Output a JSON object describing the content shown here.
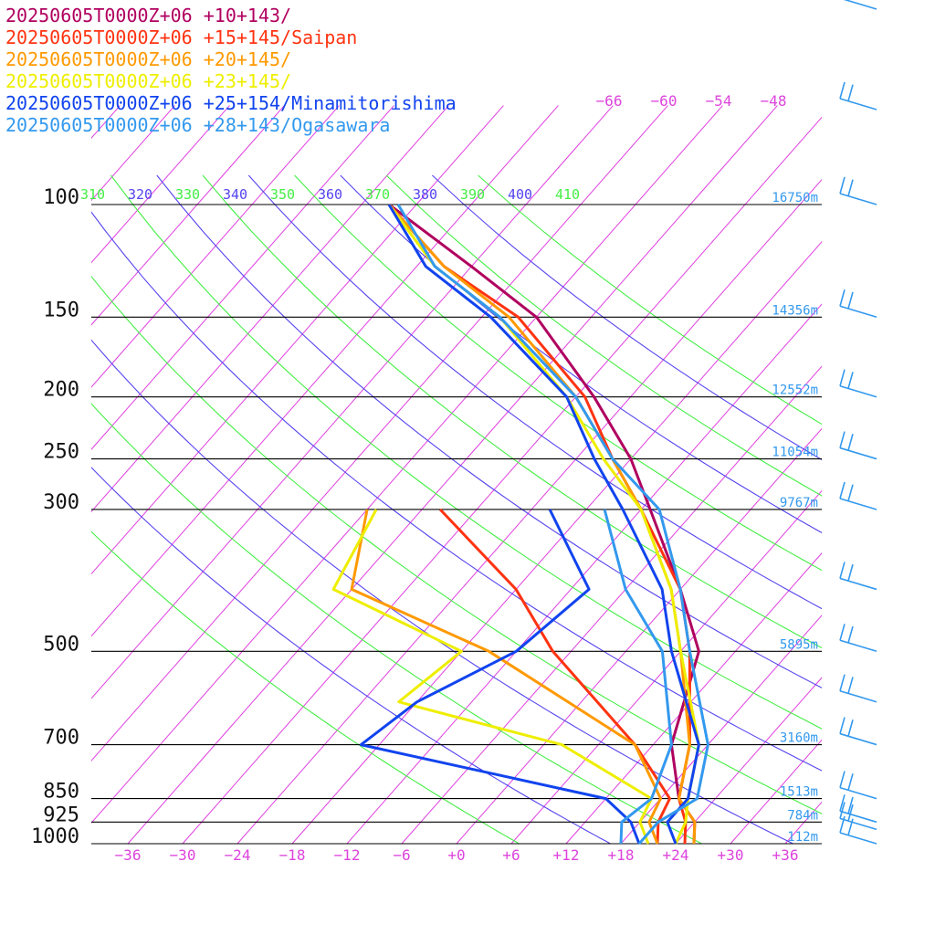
{
  "chart_data": {
    "type": "line",
    "title": "",
    "xlabel": "",
    "ylabel": "",
    "y_scale": "log-pressure",
    "ylim": [
      1000,
      100
    ],
    "xlim": [
      -39,
      39
    ],
    "pressure_ticks": [
      {
        "p": 100,
        "label": "100",
        "height": "16750m"
      },
      {
        "p": 150,
        "label": "150",
        "height": "14356m"
      },
      {
        "p": 200,
        "label": "200",
        "height": "12552m"
      },
      {
        "p": 250,
        "label": "250",
        "height": "11054m"
      },
      {
        "p": 300,
        "label": "300",
        "height": "9767m"
      },
      {
        "p": 500,
        "label": "500",
        "height": "5895m"
      },
      {
        "p": 700,
        "label": "700",
        "height": "3160m"
      },
      {
        "p": 850,
        "label": "850",
        "height": "1513m"
      },
      {
        "p": 925,
        "label": "925",
        "height": "784m"
      },
      {
        "p": 1000,
        "label": "1000",
        "height": "112m"
      }
    ],
    "temperature_ticks": [
      {
        "t": -36,
        "label": "−36"
      },
      {
        "t": -30,
        "label": "−30"
      },
      {
        "t": -24,
        "label": "−24"
      },
      {
        "t": -18,
        "label": "−18"
      },
      {
        "t": -12,
        "label": "−12"
      },
      {
        "t": -6,
        "label": "−6"
      },
      {
        "t": 0,
        "label": "+0"
      },
      {
        "t": 6,
        "label": "+6"
      },
      {
        "t": 12,
        "label": "+12"
      },
      {
        "t": 18,
        "label": "+18"
      },
      {
        "t": 24,
        "label": "+24"
      },
      {
        "t": 30,
        "label": "+30"
      },
      {
        "t": 36,
        "label": "+36"
      }
    ],
    "upper_temperature_labels": [
      {
        "t": -66,
        "label": "−66"
      },
      {
        "t": -60,
        "label": "−60"
      },
      {
        "t": -54,
        "label": "−54"
      },
      {
        "t": -48,
        "label": "−48"
      }
    ],
    "theta_labels": [
      "310",
      "320",
      "330",
      "340",
      "350",
      "360",
      "370",
      "380",
      "390",
      "400",
      "410"
    ],
    "series": [
      {
        "name": "20250605T0000Z+06 +10+143/",
        "color": "#b0005f",
        "temperature": [
          [
            1000,
            26
          ],
          [
            925,
            24
          ],
          [
            850,
            20
          ],
          [
            700,
            14
          ],
          [
            500,
            8
          ],
          [
            400,
            0
          ],
          [
            300,
            -11
          ],
          [
            250,
            -18
          ],
          [
            200,
            -28
          ],
          [
            150,
            -42
          ],
          [
            125,
            -54
          ],
          [
            100,
            -69
          ]
        ],
        "dewpoint": []
      },
      {
        "name": "20250605T0000Z+06 +15+145/Saipan",
        "color": "#ff3311",
        "temperature": [
          [
            1000,
            25
          ],
          [
            925,
            23
          ],
          [
            850,
            20
          ],
          [
            700,
            16
          ],
          [
            500,
            7
          ],
          [
            400,
            0
          ],
          [
            300,
            -12
          ],
          [
            250,
            -20
          ],
          [
            200,
            -29
          ],
          [
            150,
            -44
          ],
          [
            125,
            -57
          ],
          [
            100,
            -69
          ]
        ],
        "dewpoint": [
          [
            1000,
            22
          ],
          [
            925,
            20
          ],
          [
            850,
            19
          ],
          [
            700,
            10
          ],
          [
            500,
            -8
          ],
          [
            400,
            -18
          ],
          [
            300,
            -34
          ]
        ]
      },
      {
        "name": "20250605T0000Z+06 +20+145/",
        "color": "#ff9900",
        "temperature": [
          [
            1000,
            26
          ],
          [
            925,
            24
          ],
          [
            850,
            20
          ],
          [
            700,
            16
          ],
          [
            500,
            6
          ],
          [
            400,
            -1
          ],
          [
            300,
            -12
          ],
          [
            250,
            -20
          ],
          [
            200,
            -30
          ],
          [
            150,
            -45
          ],
          [
            125,
            -57
          ],
          [
            100,
            -69
          ]
        ],
        "dewpoint": [
          [
            1000,
            22
          ],
          [
            925,
            19
          ],
          [
            850,
            18
          ],
          [
            700,
            10
          ],
          [
            500,
            -15
          ],
          [
            400,
            -36
          ],
          [
            300,
            -42
          ]
        ]
      },
      {
        "name": "20250605T0000Z+06 +23+145/",
        "color": "#eeee00",
        "temperature": [
          [
            1000,
            24
          ],
          [
            925,
            23
          ],
          [
            850,
            21
          ],
          [
            700,
            17
          ],
          [
            500,
            6
          ],
          [
            400,
            -1
          ],
          [
            300,
            -12
          ],
          [
            250,
            -21
          ],
          [
            200,
            -31
          ],
          [
            150,
            -46
          ],
          [
            125,
            -58
          ],
          [
            100,
            -69
          ]
        ],
        "dewpoint": [
          [
            1000,
            21
          ],
          [
            925,
            18
          ],
          [
            850,
            17
          ],
          [
            700,
            2
          ],
          [
            600,
            -20
          ],
          [
            500,
            -18
          ],
          [
            400,
            -38
          ],
          [
            300,
            -41
          ]
        ]
      },
      {
        "name": "20250605T0000Z+06 +25+154/Minamitorishima",
        "color": "#1144ee",
        "temperature": [
          [
            1000,
            24
          ],
          [
            925,
            21
          ],
          [
            850,
            21
          ],
          [
            700,
            17
          ],
          [
            500,
            5
          ],
          [
            400,
            -2
          ],
          [
            300,
            -14
          ],
          [
            250,
            -22
          ],
          [
            200,
            -31
          ],
          [
            150,
            -47
          ],
          [
            125,
            -59
          ],
          [
            100,
            -69
          ]
        ],
        "dewpoint": [
          [
            1000,
            20
          ],
          [
            925,
            17
          ],
          [
            850,
            12
          ],
          [
            700,
            -20
          ],
          [
            600,
            -18
          ],
          [
            500,
            -12
          ],
          [
            400,
            -10
          ],
          [
            300,
            -22
          ]
        ]
      },
      {
        "name": "20250605T0000Z+06 +28+143/Ogasawara",
        "color": "#3399ee",
        "temperature": [
          [
            1000,
            20
          ],
          [
            925,
            20
          ],
          [
            850,
            22
          ],
          [
            700,
            18
          ],
          [
            500,
            7
          ],
          [
            400,
            0
          ],
          [
            300,
            -10
          ],
          [
            250,
            -20
          ],
          [
            200,
            -30
          ],
          [
            150,
            -46
          ],
          [
            125,
            -58
          ],
          [
            100,
            -68
          ]
        ],
        "dewpoint": [
          [
            1000,
            18
          ],
          [
            925,
            16
          ],
          [
            850,
            17
          ],
          [
            700,
            14
          ],
          [
            500,
            4
          ],
          [
            400,
            -6
          ],
          [
            300,
            -16
          ]
        ]
      }
    ],
    "wind_barbs": {
      "color": "#3399ee",
      "levels": [
        1000,
        950,
        925,
        850,
        700,
        600,
        500,
        400,
        300,
        250,
        200,
        150,
        100,
        70,
        50
      ]
    },
    "grid": true,
    "legend": "top-left"
  }
}
